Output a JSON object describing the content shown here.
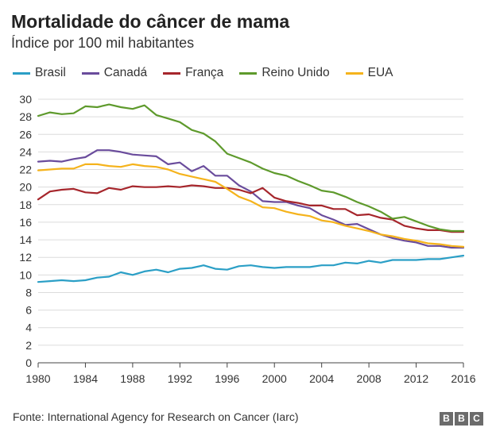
{
  "header": {
    "title": "Mortalidade do câncer de mama",
    "subtitle": "Índice por 100 mil habitantes"
  },
  "footer": {
    "source": "Fonte: International Agency for Research on Cancer (Iarc)",
    "logo_letters": [
      "B",
      "B",
      "C"
    ]
  },
  "chart_data": {
    "type": "line",
    "title": "Mortalidade do câncer de mama",
    "subtitle": "Índice por 100 mil habitantes",
    "xlabel": "",
    "ylabel": "",
    "xlim": [
      1980,
      2016
    ],
    "ylim": [
      0,
      30
    ],
    "xticks": [
      1980,
      1984,
      1988,
      1992,
      1996,
      2000,
      2004,
      2008,
      2012,
      2016
    ],
    "yticks": [
      0,
      2,
      4,
      6,
      8,
      10,
      12,
      14,
      16,
      18,
      20,
      22,
      24,
      26,
      28,
      30
    ],
    "grid": true,
    "legend_position": "top",
    "x": [
      1980,
      1981,
      1982,
      1983,
      1984,
      1985,
      1986,
      1987,
      1988,
      1989,
      1990,
      1991,
      1992,
      1993,
      1994,
      1995,
      1996,
      1997,
      1998,
      1999,
      2000,
      2001,
      2002,
      2003,
      2004,
      2005,
      2006,
      2007,
      2008,
      2009,
      2010,
      2011,
      2012,
      2013,
      2014,
      2015,
      2016
    ],
    "series": [
      {
        "name": "Brasil",
        "color": "#2b9fc6",
        "values": [
          9.2,
          9.3,
          9.4,
          9.3,
          9.4,
          9.7,
          9.8,
          10.3,
          10.0,
          10.4,
          10.6,
          10.3,
          10.7,
          10.8,
          11.1,
          10.7,
          10.6,
          11.0,
          11.1,
          10.9,
          10.8,
          10.9,
          10.9,
          10.9,
          11.1,
          11.1,
          11.4,
          11.3,
          11.6,
          11.4,
          11.7,
          11.7,
          11.7,
          11.8,
          11.8,
          12.0,
          12.2
        ]
      },
      {
        "name": "Canadá",
        "color": "#6a4c9c",
        "values": [
          22.9,
          23.0,
          22.9,
          23.2,
          23.4,
          24.2,
          24.2,
          24.0,
          23.7,
          23.6,
          23.5,
          22.6,
          22.8,
          21.8,
          22.4,
          21.3,
          21.3,
          20.2,
          19.5,
          18.4,
          18.3,
          18.3,
          17.9,
          17.6,
          16.8,
          16.3,
          15.7,
          15.8,
          15.2,
          14.6,
          14.2,
          13.9,
          13.7,
          13.3,
          13.3,
          13.1,
          13.1
        ]
      },
      {
        "name": "França",
        "color": "#a6262c",
        "values": [
          18.6,
          19.5,
          19.7,
          19.8,
          19.4,
          19.3,
          19.9,
          19.7,
          20.1,
          20.0,
          20.0,
          20.1,
          20.0,
          20.2,
          20.1,
          19.9,
          19.9,
          19.7,
          19.3,
          19.9,
          18.8,
          18.4,
          18.2,
          17.9,
          17.9,
          17.5,
          17.5,
          16.8,
          16.9,
          16.5,
          16.3,
          15.6,
          15.3,
          15.1,
          15.1,
          14.9,
          14.9
        ]
      },
      {
        "name": "Reino Unido",
        "color": "#5e9a2c",
        "values": [
          28.1,
          28.5,
          28.3,
          28.4,
          29.2,
          29.1,
          29.4,
          29.1,
          28.9,
          29.3,
          28.2,
          27.8,
          27.4,
          26.5,
          26.1,
          25.2,
          23.8,
          23.3,
          22.8,
          22.1,
          21.6,
          21.3,
          20.7,
          20.2,
          19.6,
          19.4,
          18.9,
          18.3,
          17.8,
          17.2,
          16.4,
          16.6,
          16.1,
          15.6,
          15.2,
          15.0,
          15.0
        ]
      },
      {
        "name": "EUA",
        "color": "#f5b31c",
        "values": [
          21.9,
          22.0,
          22.1,
          22.1,
          22.6,
          22.6,
          22.4,
          22.3,
          22.6,
          22.4,
          22.3,
          22.0,
          21.5,
          21.2,
          20.9,
          20.6,
          19.8,
          18.9,
          18.4,
          17.7,
          17.6,
          17.2,
          16.9,
          16.7,
          16.2,
          16.0,
          15.6,
          15.3,
          15.0,
          14.6,
          14.4,
          14.1,
          13.9,
          13.6,
          13.5,
          13.3,
          13.2
        ]
      }
    ]
  }
}
